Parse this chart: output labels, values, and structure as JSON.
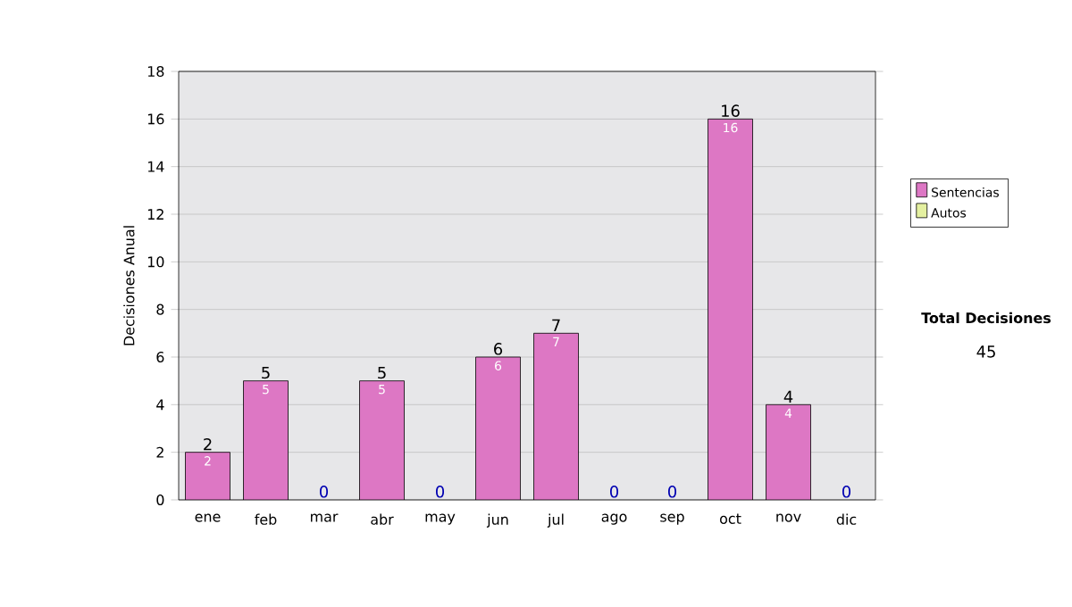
{
  "chart_data": {
    "type": "bar",
    "stacked": true,
    "ylabel": "Decisiones Anual",
    "categories": [
      "ene",
      "feb",
      "mar",
      "abr",
      "may",
      "jun",
      "jul",
      "ago",
      "sep",
      "oct",
      "nov",
      "dic"
    ],
    "series": [
      {
        "name": "Sentencias",
        "color": "#dd77c4",
        "values": [
          2,
          5,
          0,
          5,
          0,
          6,
          7,
          0,
          0,
          16,
          4,
          0
        ],
        "value_labels": [
          "2",
          "5",
          null,
          "5",
          null,
          "6",
          "7",
          null,
          null,
          "16",
          "4",
          null
        ]
      },
      {
        "name": "Autos",
        "color": "#e4f0a0",
        "values": [
          0,
          0,
          0,
          0,
          0,
          0,
          0,
          0,
          0,
          0,
          0,
          0
        ]
      }
    ],
    "totals": [
      "2",
      "5",
      "0",
      "5",
      "0",
      "6",
      "7",
      "0",
      "0",
      "16",
      "4",
      "0"
    ],
    "ylim": [
      0,
      18
    ],
    "yticks": [
      0,
      2,
      4,
      6,
      8,
      10,
      12,
      14,
      16,
      18
    ],
    "grid": "y",
    "legend": "right",
    "annotations": [
      "Total Decisiones",
      "45"
    ]
  }
}
